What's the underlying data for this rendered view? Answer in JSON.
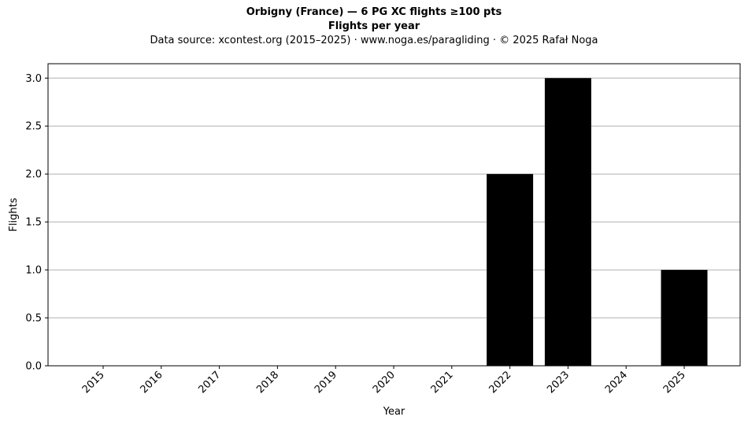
{
  "header": {
    "title_line1": "Orbigny (France)  —  6 PG XC flights ≥100 pts",
    "title_line2": "Flights per year",
    "subtitle": "Data source: xcontest.org (2015–2025)  ·  www.noga.es/paragliding  ·  © 2025 Rafał Noga"
  },
  "chart_data": {
    "type": "bar",
    "title": "Orbigny (France)  —  6 PG XC flights ≥100 pts",
    "subtitle": "Flights per year",
    "xlabel": "Year",
    "ylabel": "Flights",
    "categories": [
      "2015",
      "2016",
      "2017",
      "2018",
      "2019",
      "2020",
      "2021",
      "2022",
      "2023",
      "2024",
      "2025"
    ],
    "values": [
      0,
      0,
      0,
      0,
      0,
      0,
      0,
      2,
      3,
      0,
      1
    ],
    "ylim": [
      0,
      3.15
    ],
    "yticks": [
      0.0,
      0.5,
      1.0,
      1.5,
      2.0,
      2.5,
      3.0
    ],
    "ytick_labels": [
      "0.0",
      "0.5",
      "1.0",
      "1.5",
      "2.0",
      "2.5",
      "3.0"
    ],
    "grid": "y",
    "bar_color": "#000000",
    "grid_color": "#b0b0b0"
  }
}
